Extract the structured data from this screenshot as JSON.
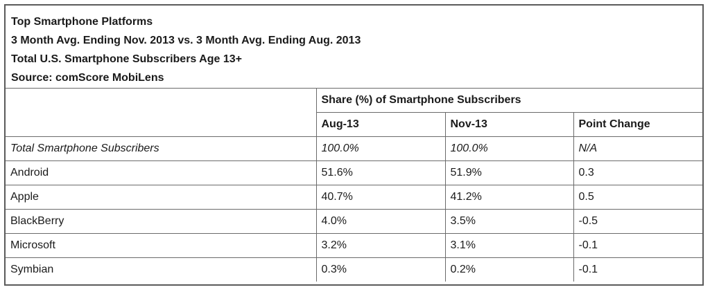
{
  "header": {
    "lines": [
      "Top Smartphone Platforms",
      "3 Month Avg. Ending Nov. 2013 vs. 3 Month Avg. Ending Aug. 2013",
      "Total U.S. Smartphone Subscribers Age 13+",
      "Source: comScore MobiLens"
    ]
  },
  "table": {
    "group_header": "Share (%) of Smartphone Subscribers",
    "columns": [
      "Aug-13",
      "Nov-13",
      "Point Change"
    ],
    "rows": [
      {
        "platform": "Total Smartphone Subscribers",
        "aug": "100.0%",
        "nov": "100.0%",
        "change": "N/A"
      },
      {
        "platform": "Android",
        "aug": "51.6%",
        "nov": "51.9%",
        "change": "0.3"
      },
      {
        "platform": "Apple",
        "aug": "40.7%",
        "nov": "41.2%",
        "change": "0.5"
      },
      {
        "platform": "BlackBerry",
        "aug": "4.0%",
        "nov": "3.5%",
        "change": "-0.5"
      },
      {
        "platform": "Microsoft",
        "aug": "3.2%",
        "nov": "3.1%",
        "change": "-0.1"
      },
      {
        "platform": "Symbian",
        "aug": "0.3%",
        "nov": "0.2%",
        "change": "-0.1"
      }
    ]
  }
}
